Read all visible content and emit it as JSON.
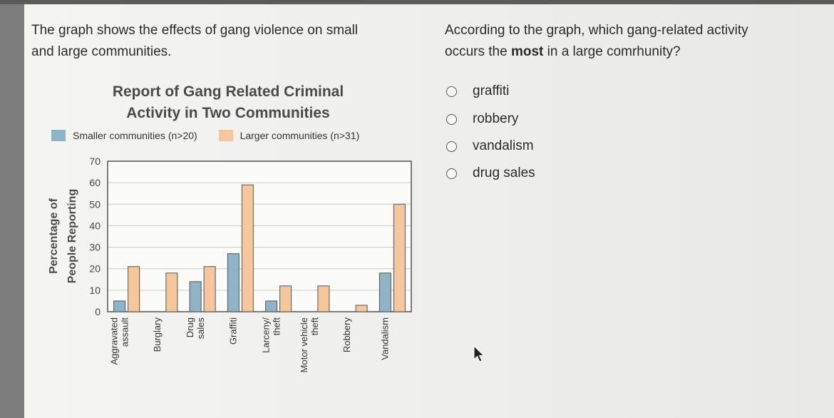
{
  "stem": {
    "line1": "The graph shows the effects of gang violence on small",
    "line2": "and large communities."
  },
  "question": {
    "line1": "According to the graph, which gang-related activity",
    "line2_before": "occurs the ",
    "line2_bold": "most",
    "line2_after": " in a large comrhunity?"
  },
  "options": [
    {
      "label": "graffiti"
    },
    {
      "label": "robbery"
    },
    {
      "label": "vandalism"
    },
    {
      "label": "drug sales"
    }
  ],
  "chart_data": {
    "type": "bar",
    "title_line1": "Report of Gang Related Criminal",
    "title_line2": "Activity in Two Communities",
    "ylabel_line1": "Percentage of",
    "ylabel_line2": "People Reporting",
    "ylim": [
      0,
      70
    ],
    "yticks": [
      "0",
      "10",
      "20",
      "30",
      "40",
      "50",
      "60",
      "70"
    ],
    "grid": true,
    "legend_position": "top",
    "categories": [
      [
        "Aggravated",
        "assault"
      ],
      [
        "Burglary"
      ],
      [
        "Drug",
        "sales"
      ],
      [
        "Graffiti"
      ],
      [
        "Larceny/",
        "theft"
      ],
      [
        "Motor vehicle",
        "theft"
      ],
      [
        "Robbery"
      ],
      [
        "Vandalism"
      ]
    ],
    "series": [
      {
        "name": "Smaller communities (n>20)",
        "color": "#8fb3c7",
        "values": [
          5,
          0,
          14,
          27,
          5,
          0,
          0,
          18
        ]
      },
      {
        "name": "Larger communities (n>31)",
        "color": "#f6c79a",
        "values": [
          21,
          18,
          21,
          59,
          12,
          12,
          3,
          50
        ]
      }
    ],
    "legend": {
      "small_label": "Smaller communities (n>20)",
      "large_label": "Larger communities (n>31)"
    }
  }
}
